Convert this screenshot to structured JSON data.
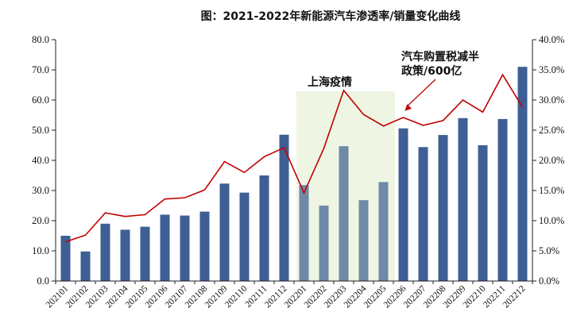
{
  "chart_data": {
    "type": "bar+line",
    "title": "图：2021-2022年新能源汽车渗透率/销量变化曲线",
    "categories": [
      "202101",
      "202102",
      "202103",
      "202104",
      "202105",
      "202106",
      "202107",
      "202108",
      "202109",
      "202110",
      "202111",
      "202112",
      "202201",
      "202202",
      "202203",
      "202204",
      "202205",
      "202206",
      "202207",
      "202208",
      "202209",
      "202210",
      "202211",
      "202212"
    ],
    "series": [
      {
        "kind": "bar",
        "axis": "left",
        "color": "#3d5f94",
        "highlight_color": "#6f8aa6",
        "values": [
          15.0,
          9.8,
          19.0,
          17.0,
          18.0,
          22.0,
          21.7,
          23.0,
          32.3,
          29.3,
          35.0,
          48.5,
          31.8,
          25.0,
          44.7,
          26.8,
          32.8,
          50.6,
          44.4,
          48.4,
          54.0,
          45.0,
          53.7,
          71.0
        ]
      },
      {
        "kind": "line",
        "axis": "right",
        "color": "#c00000",
        "values": [
          6.5,
          7.6,
          11.3,
          10.7,
          11.0,
          13.6,
          13.8,
          15.1,
          19.8,
          18.0,
          20.6,
          22.1,
          14.6,
          22.0,
          31.6,
          27.6,
          25.7,
          27.1,
          25.8,
          26.6,
          30.0,
          28.0,
          34.2,
          28.8
        ]
      }
    ],
    "y_left": {
      "min": 0,
      "max": 80,
      "ticks": [
        "0.0",
        "10.0",
        "20.0",
        "30.0",
        "40.0",
        "50.0",
        "60.0",
        "70.0",
        "80.0"
      ]
    },
    "y_right": {
      "min": 0,
      "max": 40,
      "ticks": [
        "0.0%",
        "5.0%",
        "10.0%",
        "15.0%",
        "20.0%",
        "25.0%",
        "30.0%",
        "35.0%",
        "40.0%"
      ]
    },
    "shaded_period": {
      "from": "202201",
      "to": "202205",
      "label": "上海疫情",
      "color": "#eef5e3"
    },
    "annotation": {
      "lines": [
        "汽车购置税减半",
        "政策/600亿"
      ],
      "points_to": "202206"
    },
    "grid": false
  }
}
